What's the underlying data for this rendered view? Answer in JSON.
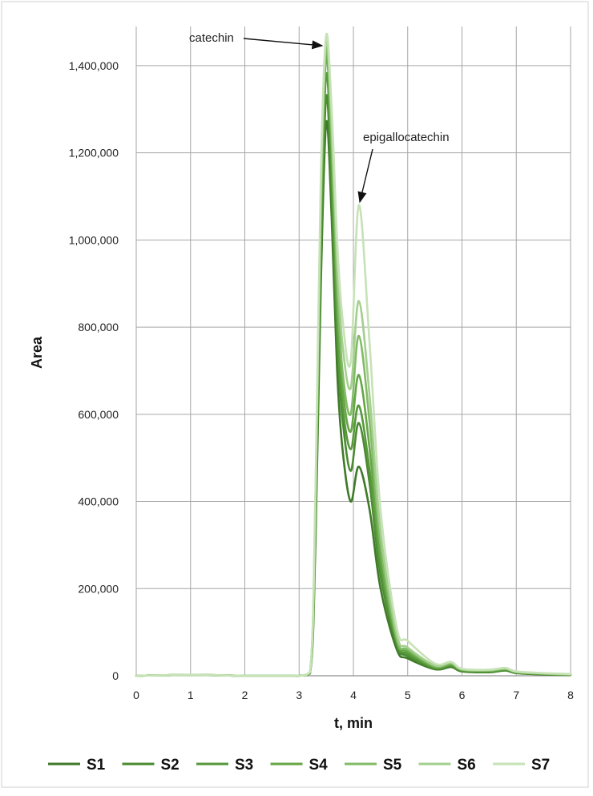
{
  "chart_data": {
    "type": "line",
    "title": "",
    "xlabel": "t, min",
    "ylabel": "Area",
    "xlim": [
      0,
      8
    ],
    "ylim": [
      0,
      1400000
    ],
    "x_ticks": [
      "0",
      "1",
      "2",
      "3",
      "4",
      "5",
      "6",
      "7",
      "8"
    ],
    "y_ticks": [
      "0",
      "200,000",
      "400,000",
      "600,000",
      "800,000",
      "1,000,000",
      "1,200,000",
      "1,400,000"
    ],
    "grid": true,
    "legend_position": "bottom",
    "annotations": [
      {
        "text": "catechin",
        "x": 3.5,
        "y": 1460000
      },
      {
        "text": "epigallocatechin",
        "x": 4.1,
        "y": 1080000
      }
    ],
    "x": [
      0,
      1,
      2,
      2.9,
      3.2,
      3.3,
      3.4,
      3.5,
      3.6,
      3.7,
      3.8,
      3.95,
      4.1,
      4.3,
      4.5,
      4.8,
      5.0,
      5.5,
      5.8,
      6.0,
      6.5,
      6.8,
      7.0,
      7.5,
      8.0
    ],
    "series": [
      {
        "name": "S1",
        "color": "#3f7a28",
        "values": [
          0,
          2000,
          0,
          0,
          5000,
          300000,
          900000,
          1270000,
          1050000,
          700000,
          520000,
          400000,
          480000,
          380000,
          200000,
          60000,
          40000,
          15000,
          20000,
          10000,
          8000,
          12000,
          6000,
          3000,
          2000
        ]
      },
      {
        "name": "S2",
        "color": "#4a8a30",
        "values": [
          0,
          2000,
          0,
          0,
          6000,
          330000,
          950000,
          1330000,
          1100000,
          770000,
          590000,
          470000,
          580000,
          440000,
          230000,
          70000,
          45000,
          17000,
          22000,
          11000,
          9000,
          13000,
          7000,
          3500,
          2000
        ]
      },
      {
        "name": "S3",
        "color": "#56983a",
        "values": [
          0,
          2000,
          0,
          0,
          6000,
          350000,
          1000000,
          1380000,
          1150000,
          800000,
          620000,
          520000,
          620000,
          470000,
          250000,
          75000,
          50000,
          18000,
          24000,
          12000,
          10000,
          14000,
          7500,
          4000,
          2500
        ]
      },
      {
        "name": "S4",
        "color": "#65a645",
        "values": [
          0,
          2000,
          0,
          0,
          7000,
          370000,
          1050000,
          1420000,
          1200000,
          850000,
          660000,
          560000,
          690000,
          520000,
          270000,
          80000,
          55000,
          20000,
          26000,
          13000,
          11000,
          15000,
          8000,
          4500,
          3000
        ]
      },
      {
        "name": "S5",
        "color": "#82bb67",
        "values": [
          0,
          2000,
          0,
          0,
          7000,
          380000,
          1080000,
          1440000,
          1230000,
          900000,
          700000,
          600000,
          780000,
          580000,
          300000,
          85000,
          60000,
          22000,
          28000,
          14000,
          12000,
          16000,
          8500,
          5000,
          3000
        ]
      },
      {
        "name": "S6",
        "color": "#a4cf8e",
        "values": [
          0,
          2000,
          0,
          0,
          8000,
          400000,
          1120000,
          1460000,
          1260000,
          950000,
          760000,
          660000,
          860000,
          640000,
          330000,
          95000,
          65000,
          24000,
          30000,
          15000,
          13000,
          17000,
          9000,
          5500,
          3500
        ]
      },
      {
        "name": "S7",
        "color": "#c6e2b6",
        "values": [
          0,
          2000,
          0,
          0,
          8000,
          420000,
          1150000,
          1470000,
          1300000,
          1000000,
          820000,
          720000,
          1080000,
          760000,
          380000,
          110000,
          80000,
          28000,
          32000,
          16000,
          14000,
          18000,
          10000,
          6000,
          4000
        ]
      }
    ]
  }
}
